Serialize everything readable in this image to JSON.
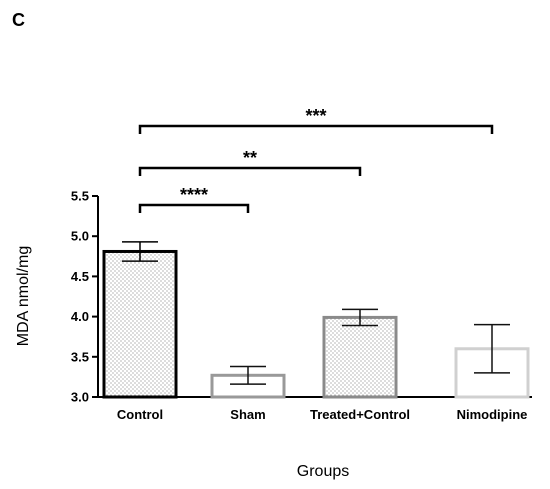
{
  "panel_label": "C",
  "chart_data": {
    "type": "bar",
    "title": "",
    "xlabel": "Groups",
    "ylabel": "MDA nmol/mg",
    "ylim": [
      3.0,
      5.5
    ],
    "y_ticks": [
      3.0,
      3.5,
      4.0,
      4.5,
      5.0,
      5.5
    ],
    "y_tick_labels": [
      "3.0",
      "3.5",
      "4.0",
      "4.5",
      "5.0",
      "5.5"
    ],
    "grid": false,
    "legend": "none",
    "categories": [
      "Control",
      "Sham",
      "Treated+Control",
      "Nimodipine"
    ],
    "values": [
      4.81,
      3.27,
      3.99,
      3.6
    ],
    "error": [
      0.12,
      0.11,
      0.1,
      0.3
    ],
    "bar_edge_colors": [
      "#000000",
      "#999999",
      "#8a8a8a",
      "#d0d0d0"
    ],
    "bar_patterns": [
      "dots",
      "none",
      "dots",
      "none"
    ],
    "significance": [
      {
        "from": "Control",
        "to": "Sham",
        "label": "****"
      },
      {
        "from": "Control",
        "to": "Treated+Control",
        "label": "**"
      },
      {
        "from": "Control",
        "to": "Nimodipine",
        "label": "***"
      }
    ]
  }
}
